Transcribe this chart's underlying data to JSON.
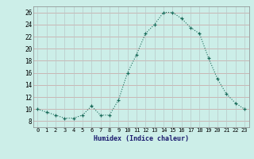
{
  "x": [
    0,
    1,
    2,
    3,
    4,
    5,
    6,
    7,
    8,
    9,
    10,
    11,
    12,
    13,
    14,
    15,
    16,
    17,
    18,
    19,
    20,
    21,
    22,
    23
  ],
  "y": [
    10,
    9.5,
    9,
    8.5,
    8.5,
    9,
    10.5,
    9,
    9,
    11.5,
    16,
    19,
    22.5,
    24,
    26,
    26,
    25,
    23.5,
    22.5,
    18.5,
    15,
    12.5,
    11,
    10
  ],
  "xlim": [
    -0.5,
    23.5
  ],
  "ylim": [
    7,
    27
  ],
  "yticks": [
    8,
    10,
    12,
    14,
    16,
    18,
    20,
    22,
    24,
    26
  ],
  "xtick_labels": [
    "0",
    "1",
    "2",
    "3",
    "4",
    "5",
    "6",
    "7",
    "8",
    "9",
    "10",
    "11",
    "12",
    "13",
    "14",
    "15",
    "16",
    "17",
    "18",
    "19",
    "20",
    "21",
    "22",
    "23"
  ],
  "xlabel": "Humidex (Indice chaleur)",
  "line_color": "#1a6b5a",
  "marker": "+",
  "bg_color": "#cceee8",
  "grid_color_h": "#c8a0a0",
  "grid_color_v": "#b8c8c8",
  "title": ""
}
